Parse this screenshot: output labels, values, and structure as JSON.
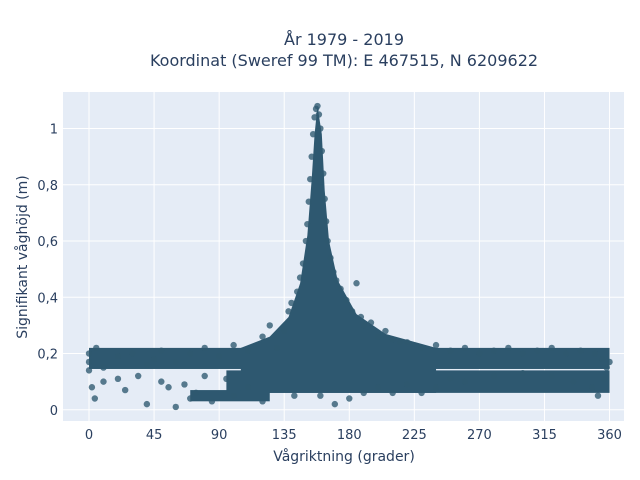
{
  "chart_data": {
    "type": "scatter",
    "title": "År 1979 - 2019",
    "subtitle": "Koordinat (Sweref 99 TM): E 467515, N 6209622",
    "xlabel": "Vågriktning (grader)",
    "ylabel": "Signifikant våghöjd (m)",
    "xlim": [
      -18,
      370
    ],
    "ylim": [
      -0.04,
      1.13
    ],
    "x_ticks": [
      0,
      45,
      90,
      135,
      180,
      225,
      270,
      315,
      360
    ],
    "y_ticks": [
      0,
      0.2,
      0.4,
      0.6,
      0.8,
      1
    ],
    "x_tick_labels": [
      "0",
      "45",
      "90",
      "135",
      "180",
      "225",
      "270",
      "315",
      "360"
    ],
    "y_tick_labels": [
      "0",
      "0,2",
      "0,4",
      "0,6",
      "0,8",
      "1"
    ],
    "grid": true,
    "marker_color": "#2e5870",
    "plot_bg": "#e5ecf6",
    "series": [
      {
        "points": [
          [
            0,
            0.17
          ],
          [
            0,
            0.2
          ],
          [
            0,
            0.14
          ],
          [
            5,
            0.22
          ],
          [
            10,
            0.15
          ],
          [
            20,
            0.19
          ],
          [
            30,
            0.2
          ],
          [
            40,
            0.16
          ],
          [
            45,
            0.18
          ],
          [
            50,
            0.21
          ],
          [
            60,
            0.17
          ],
          [
            70,
            0.2
          ],
          [
            80,
            0.22
          ],
          [
            90,
            0.19
          ],
          [
            100,
            0.23
          ],
          [
            110,
            0.21
          ],
          [
            2,
            0.08
          ],
          [
            4,
            0.04
          ],
          [
            10,
            0.1
          ],
          [
            20,
            0.11
          ],
          [
            25,
            0.07
          ],
          [
            34,
            0.12
          ],
          [
            40,
            0.02
          ],
          [
            50,
            0.1
          ],
          [
            55,
            0.08
          ],
          [
            60,
            0.01
          ],
          [
            66,
            0.09
          ],
          [
            70,
            0.04
          ],
          [
            74,
            0.06
          ],
          [
            80,
            0.12
          ],
          [
            85,
            0.03
          ],
          [
            95,
            0.11
          ],
          [
            100,
            0.05
          ],
          [
            110,
            0.08
          ],
          [
            120,
            0.03
          ],
          [
            120,
            0.26
          ],
          [
            125,
            0.3
          ],
          [
            130,
            0.22
          ],
          [
            135,
            0.28
          ],
          [
            138,
            0.35
          ],
          [
            140,
            0.38
          ],
          [
            142,
            0.05
          ],
          [
            144,
            0.42
          ],
          [
            146,
            0.47
          ],
          [
            148,
            0.52
          ],
          [
            150,
            0.6
          ],
          [
            151,
            0.66
          ],
          [
            152,
            0.74
          ],
          [
            153,
            0.82
          ],
          [
            154,
            0.9
          ],
          [
            155,
            0.98
          ],
          [
            156,
            1.04
          ],
          [
            157,
            1.07
          ],
          [
            158,
            1.08
          ],
          [
            159,
            1.05
          ],
          [
            160,
            1.0
          ],
          [
            161,
            0.92
          ],
          [
            162,
            0.84
          ],
          [
            163,
            0.75
          ],
          [
            164,
            0.67
          ],
          [
            165,
            0.6
          ],
          [
            167,
            0.54
          ],
          [
            169,
            0.49
          ],
          [
            171,
            0.46
          ],
          [
            174,
            0.43
          ],
          [
            178,
            0.39
          ],
          [
            182,
            0.35
          ],
          [
            185,
            0.45
          ],
          [
            188,
            0.33
          ],
          [
            190,
            0.3
          ],
          [
            195,
            0.31
          ],
          [
            200,
            0.26
          ],
          [
            205,
            0.28
          ],
          [
            210,
            0.25
          ],
          [
            215,
            0.24
          ],
          [
            220,
            0.24
          ],
          [
            230,
            0.22
          ],
          [
            240,
            0.23
          ],
          [
            250,
            0.21
          ],
          [
            260,
            0.22
          ],
          [
            270,
            0.2
          ],
          [
            280,
            0.21
          ],
          [
            290,
            0.22
          ],
          [
            300,
            0.2
          ],
          [
            310,
            0.21
          ],
          [
            320,
            0.22
          ],
          [
            330,
            0.2
          ],
          [
            340,
            0.21
          ],
          [
            350,
            0.2
          ],
          [
            355,
            0.18
          ],
          [
            358,
            0.15
          ],
          [
            360,
            0.17
          ],
          [
            160,
            0.05
          ],
          [
            170,
            0.02
          ],
          [
            180,
            0.04
          ],
          [
            190,
            0.06
          ],
          [
            200,
            0.08
          ],
          [
            210,
            0.06
          ],
          [
            220,
            0.09
          ],
          [
            230,
            0.06
          ],
          [
            240,
            0.08
          ],
          [
            250,
            0.11
          ],
          [
            260,
            0.1
          ],
          [
            280,
            0.12
          ],
          [
            300,
            0.13
          ],
          [
            320,
            0.12
          ],
          [
            335,
            0.1
          ],
          [
            348,
            0.08
          ],
          [
            352,
            0.05
          ],
          [
            356,
            0.11
          ]
        ]
      }
    ]
  }
}
